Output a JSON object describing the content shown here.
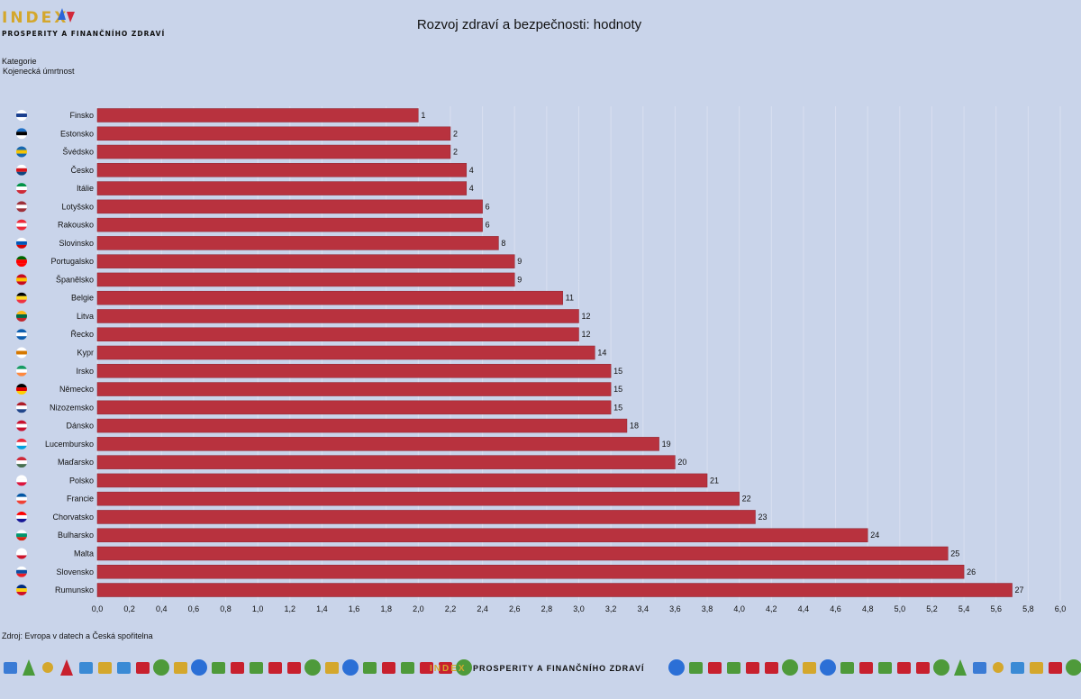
{
  "logo": {
    "index": "INDEX",
    "subtitle": "PROSPERITY A FINANČNÍHO ZDRAVÍ"
  },
  "header": {
    "title": "Rozvoj zdraví a bezpečnosti: hodnoty"
  },
  "category": {
    "label": "Kategorie",
    "value": "Kojenecká úmrtnost"
  },
  "source": "Zdroj: Evropa v datech a Česká spořitelna",
  "colors": {
    "background": "#c9d4ea",
    "bar": "#b8323e",
    "grid": "#d9dff0"
  },
  "chart_data": {
    "type": "bar",
    "orientation": "horizontal",
    "title": "Rozvoj zdraví a bezpečnosti: hodnoty",
    "xlim": [
      0,
      6.0
    ],
    "grid": true,
    "xticks": [
      "0,0",
      "0,2",
      "0,4",
      "0,6",
      "0,8",
      "1,0",
      "1,2",
      "1,4",
      "1,6",
      "1,8",
      "2,0",
      "2,2",
      "2,4",
      "2,6",
      "2,8",
      "3,0",
      "3,2",
      "3,4",
      "3,6",
      "3,8",
      "4,0",
      "4,2",
      "4,4",
      "4,6",
      "4,8",
      "5,0",
      "5,2",
      "5,4",
      "5,6",
      "5,8",
      "6,0"
    ],
    "categories": [
      "Finsko",
      "Estonsko",
      "Švédsko",
      "Česko",
      "Itálie",
      "Lotyšsko",
      "Rakousko",
      "Slovinsko",
      "Portugalsko",
      "Španělsko",
      "Belgie",
      "Litva",
      "Řecko",
      "Kypr",
      "Irsko",
      "Německo",
      "Nizozemsko",
      "Dánsko",
      "Lucembursko",
      "Maďarsko",
      "Polsko",
      "Francie",
      "Chorvatsko",
      "Bulharsko",
      "Malta",
      "Slovensko",
      "Rumunsko"
    ],
    "values": [
      2.0,
      2.2,
      2.2,
      2.3,
      2.3,
      2.4,
      2.4,
      2.5,
      2.6,
      2.6,
      2.9,
      3.0,
      3.0,
      3.1,
      3.2,
      3.2,
      3.2,
      3.3,
      3.5,
      3.6,
      3.8,
      4.0,
      4.1,
      4.8,
      5.3,
      5.4,
      5.7
    ],
    "data_labels": [
      "1",
      "2",
      "2",
      "4",
      "4",
      "6",
      "6",
      "8",
      "9",
      "9",
      "11",
      "12",
      "12",
      "14",
      "15",
      "15",
      "15",
      "18",
      "19",
      "20",
      "21",
      "22",
      "23",
      "24",
      "25",
      "26",
      "27"
    ],
    "flags": [
      [
        "#fff",
        "#1a3f8f",
        "#fff"
      ],
      [
        "#1f6fc5",
        "#000",
        "#fff"
      ],
      [
        "#1667b0",
        "#f5c400",
        "#1667b0"
      ],
      [
        "#fff",
        "#d7141a",
        "#11457e"
      ],
      [
        "#009246",
        "#fff",
        "#ce2b37"
      ],
      [
        "#9e3039",
        "#fff",
        "#9e3039"
      ],
      [
        "#ed2939",
        "#fff",
        "#ed2939"
      ],
      [
        "#fff",
        "#0057b8",
        "#d50000"
      ],
      [
        "#006600",
        "#ff0000",
        "#ff0000"
      ],
      [
        "#c60b1e",
        "#ffc400",
        "#c60b1e"
      ],
      [
        "#000",
        "#fdda24",
        "#ef3340"
      ],
      [
        "#fdb913",
        "#006a44",
        "#c1272d"
      ],
      [
        "#0d5eaf",
        "#fff",
        "#0d5eaf"
      ],
      [
        "#fff",
        "#d57800",
        "#fff"
      ],
      [
        "#169b62",
        "#fff",
        "#ff883e"
      ],
      [
        "#000",
        "#dd0000",
        "#ffce00"
      ],
      [
        "#ae1c28",
        "#fff",
        "#21468b"
      ],
      [
        "#c8102e",
        "#fff",
        "#c8102e"
      ],
      [
        "#ed2939",
        "#fff",
        "#00a1de"
      ],
      [
        "#ce2939",
        "#fff",
        "#477050"
      ],
      [
        "#fff",
        "#fff",
        "#dc143c"
      ],
      [
        "#0055a4",
        "#fff",
        "#ef4135"
      ],
      [
        "#ff0000",
        "#fff",
        "#171796"
      ],
      [
        "#fff",
        "#00966e",
        "#d62612"
      ],
      [
        "#fff",
        "#fff",
        "#cf142b"
      ],
      [
        "#fff",
        "#0b4ea2",
        "#ee1c25"
      ],
      [
        "#002b7f",
        "#fcd116",
        "#ce1126"
      ]
    ]
  },
  "footer": {
    "icons": [
      "waves",
      "tree",
      "sun",
      "mountains",
      "ferris-wheel",
      "tower",
      "fountain",
      "building",
      "hill",
      "city",
      "lake",
      "car",
      "bench",
      "gear",
      "fence",
      "building",
      "hill",
      "city",
      "lake",
      "car",
      "bench",
      "gear",
      "fence",
      "building",
      "hill"
    ]
  }
}
